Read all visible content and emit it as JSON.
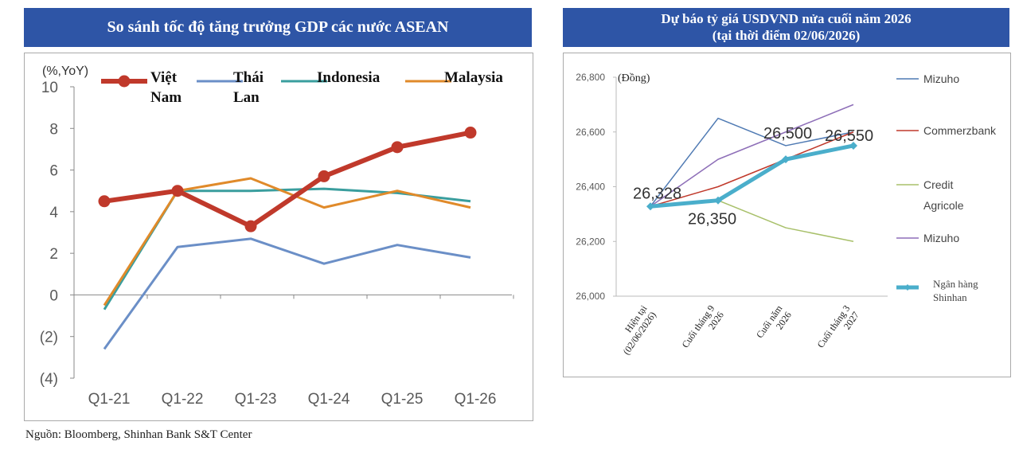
{
  "source": "Nguồn: Bloomberg, Shinhan Bank S&T Center",
  "chart_data": [
    {
      "type": "line",
      "title": "So sánh tốc độ tăng trưởng GDP các nước ASEAN",
      "ylabel": "(%,YoY)",
      "categories": [
        "Q1-21",
        "Q1-22",
        "Q1-23",
        "Q1-24",
        "Q1-25",
        "Q1-26"
      ],
      "ylim": [
        -4,
        10
      ],
      "yticks": [
        -4,
        -2,
        0,
        2,
        4,
        6,
        8,
        10
      ],
      "ytick_labels": [
        "(4)",
        "(2)",
        "0",
        "2",
        "4",
        "6",
        "8",
        "10"
      ],
      "grid": false,
      "legend_position": "top",
      "series": [
        {
          "name_lines": [
            "Việt",
            "Nam"
          ],
          "color": "#c0392b",
          "marker": "circle",
          "values": [
            4.5,
            5.0,
            3.3,
            5.7,
            7.1,
            7.8
          ]
        },
        {
          "name_lines": [
            "Thái",
            "Lan"
          ],
          "color": "#6b8fc7",
          "marker": "none",
          "values": [
            -2.6,
            2.3,
            2.7,
            1.5,
            2.4,
            1.8
          ]
        },
        {
          "name_lines": [
            "Indonesia"
          ],
          "color": "#3a9e9e",
          "marker": "none",
          "values": [
            -0.7,
            5.0,
            5.0,
            5.1,
            4.9,
            4.5
          ]
        },
        {
          "name_lines": [
            "Malaysia"
          ],
          "color": "#e08a2a",
          "marker": "none",
          "values": [
            -0.5,
            5.0,
            5.6,
            4.2,
            5.0,
            4.2
          ]
        }
      ]
    },
    {
      "type": "line",
      "title_lines": [
        "Dự báo tỷ giá USDVND nửa cuối năm 2026",
        "(tại thời điểm 02/06/2026)"
      ],
      "ylabel": "(Đồng)",
      "categories": [
        [
          "Hiện tại",
          "(02/06/2026)"
        ],
        [
          "Cuối tháng 9",
          "2026"
        ],
        [
          "Cuối năm",
          "2026"
        ],
        [
          "Cuối tháng 3",
          "2027"
        ]
      ],
      "ylim": [
        26000,
        26800
      ],
      "yticks": [
        26000,
        26200,
        26400,
        26600,
        26800
      ],
      "ytick_labels": [
        "26,000",
        "26,200",
        "26,400",
        "26,600",
        "26,800"
      ],
      "grid": false,
      "legend_position": "right",
      "series": [
        {
          "name_lines": [
            "Mizuho"
          ],
          "color": "#4f7ab3",
          "values": [
            26328,
            26650,
            26550,
            26600
          ]
        },
        {
          "name_lines": [
            "Commerzbank"
          ],
          "color": "#c0392b",
          "values": [
            26328,
            26400,
            26500,
            26600
          ]
        },
        {
          "name_lines": [
            "Credit",
            "Agricole"
          ],
          "color": "#a8c06a",
          "values": [
            26328,
            26350,
            26250,
            26200
          ]
        },
        {
          "name_lines": [
            "Mizuho"
          ],
          "color": "#8e6fb8",
          "values": [
            26328,
            26500,
            26600,
            26700
          ]
        },
        {
          "name_lines": [
            "Ngân hàng",
            "Shinhan"
          ],
          "color": "#4aaecb",
          "marker": "diamond",
          "highlight": true,
          "values": [
            26328,
            26350,
            26500,
            26550
          ],
          "data_labels": [
            "26,328",
            "26,350",
            "26,500",
            "26,550"
          ]
        }
      ]
    }
  ]
}
